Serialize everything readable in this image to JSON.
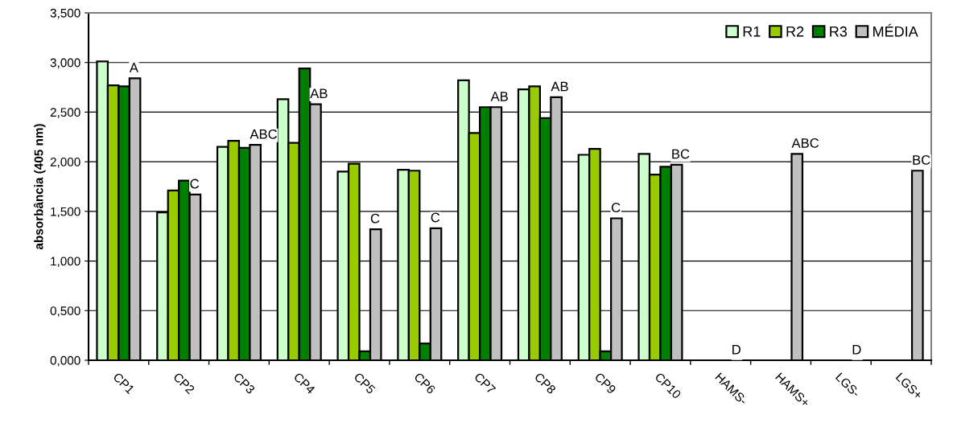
{
  "chart_data": {
    "type": "bar",
    "ylabel": "absorbância (405 nm)",
    "categories": [
      "CP1",
      "CP2",
      "CP3",
      "CP4",
      "CP5",
      "CP6",
      "CP7",
      "CP8",
      "CP9",
      "CP10",
      "HAMS-",
      "HAMS+",
      "LGS-",
      "LGS+"
    ],
    "series": [
      {
        "name": "R1",
        "color": "#ccffcc",
        "values": [
          3.01,
          1.49,
          2.15,
          2.63,
          1.9,
          1.92,
          2.82,
          2.73,
          2.07,
          2.08,
          null,
          null,
          null,
          null
        ]
      },
      {
        "name": "R2",
        "color": "#99cc00",
        "values": [
          2.77,
          1.71,
          2.21,
          2.19,
          1.98,
          1.91,
          2.29,
          2.76,
          2.13,
          1.87,
          null,
          null,
          null,
          null
        ]
      },
      {
        "name": "R3",
        "color": "#008000",
        "values": [
          2.76,
          1.81,
          2.14,
          2.94,
          0.09,
          0.17,
          2.55,
          2.44,
          0.09,
          1.95,
          null,
          null,
          null,
          null
        ]
      },
      {
        "name": "MÉDIA",
        "color": "#c0c0c0",
        "values": [
          2.84,
          1.67,
          2.17,
          2.58,
          1.32,
          1.33,
          2.55,
          2.65,
          1.43,
          1.97,
          0,
          2.08,
          0,
          1.91
        ]
      }
    ],
    "ylim": [
      0,
      3.5
    ],
    "yticks": [
      {
        "value": 0,
        "label": "0,000"
      },
      {
        "value": 0.5,
        "label": "0,500"
      },
      {
        "value": 1,
        "label": "1,000"
      },
      {
        "value": 1.5,
        "label": "1,500"
      },
      {
        "value": 2,
        "label": "2,000"
      },
      {
        "value": 2.5,
        "label": "2,500"
      },
      {
        "value": 3,
        "label": "3,000"
      },
      {
        "value": 3.5,
        "label": "3,500"
      }
    ],
    "grid": "y",
    "legend": "top right",
    "annotations": [
      "A",
      "C",
      "ABC",
      "AB",
      "C",
      "C",
      "AB",
      "AB",
      "C",
      "BC",
      "D",
      "ABC",
      "D",
      "BC"
    ]
  }
}
